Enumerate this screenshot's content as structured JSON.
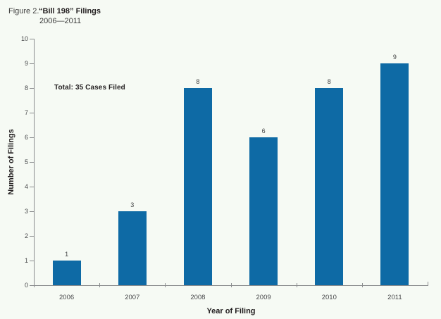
{
  "figure": {
    "label": "Figure 2.",
    "title": "“Bill 198” Filings",
    "subtitle": "2006—2011"
  },
  "chart_data": {
    "type": "bar",
    "title": "Figure 2. “Bill 198” Filings 2006—2011",
    "categories": [
      "2006",
      "2007",
      "2008",
      "2009",
      "2010",
      "2011"
    ],
    "values": [
      1,
      3,
      8,
      6,
      8,
      9
    ],
    "xlabel": "Year of Filing",
    "ylabel": "Number of Filings",
    "ylim": [
      0,
      10
    ],
    "ytick_step": 1,
    "grid": false,
    "legend": "none",
    "value_labels": true,
    "annotation": "Total: 35 Cases Filed"
  },
  "colors": {
    "background": "#f6faf4",
    "bar": "#0e6aa5",
    "axis": "#8a8c8e",
    "text_dark": "#231f20",
    "text_tick": "#47484a"
  }
}
